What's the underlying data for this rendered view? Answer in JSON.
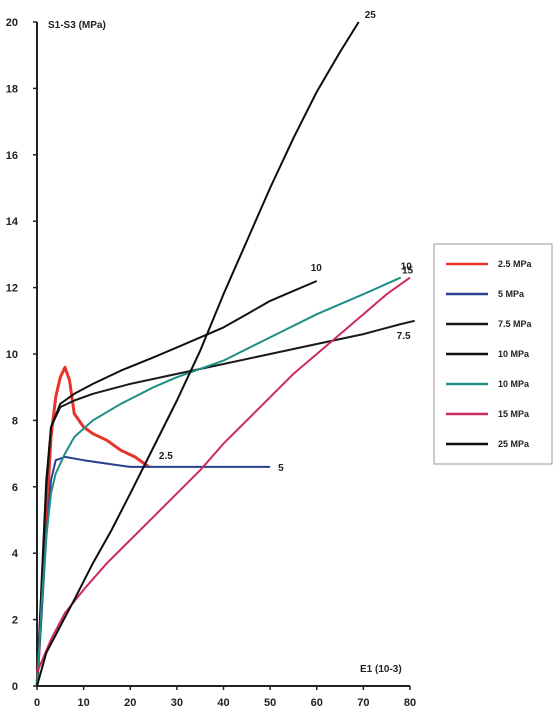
{
  "chart_data": {
    "type": "line",
    "ylabel": "S1-S3 (MPa)",
    "xlabel": "E1 (10-3)",
    "xlim": [
      0,
      80
    ],
    "ylim": [
      0,
      20
    ],
    "xticks": [
      "0",
      "10",
      "20",
      "30",
      "40",
      "50",
      "60",
      "70",
      "80"
    ],
    "yticks": [
      "0",
      "2",
      "4",
      "6",
      "8",
      "10",
      "12",
      "14",
      "16",
      "18",
      "20"
    ],
    "grid": false,
    "legend_position": "right",
    "series": [
      {
        "name": "2.5 MPa",
        "color": "#e8332b",
        "end_label": "2.5",
        "points": [
          [
            0,
            0
          ],
          [
            1,
            2.5
          ],
          [
            2,
            5
          ],
          [
            3,
            7.5
          ],
          [
            4,
            8.7
          ],
          [
            5,
            9.3
          ],
          [
            6,
            9.6
          ],
          [
            7,
            9.2
          ],
          [
            8,
            8.2
          ],
          [
            10,
            7.8
          ],
          [
            12,
            7.6
          ],
          [
            15,
            7.4
          ],
          [
            18,
            7.1
          ],
          [
            21,
            6.9
          ],
          [
            24,
            6.6
          ]
        ]
      },
      {
        "name": "5 MPa",
        "color": "#2a3f8f",
        "end_label": "5",
        "points": [
          [
            0,
            0
          ],
          [
            1,
            2.2
          ],
          [
            2,
            4.5
          ],
          [
            3,
            6.2
          ],
          [
            4,
            6.8
          ],
          [
            6,
            6.9
          ],
          [
            10,
            6.8
          ],
          [
            15,
            6.7
          ],
          [
            20,
            6.6
          ],
          [
            25,
            6.6
          ],
          [
            30,
            6.6
          ],
          [
            35,
            6.6
          ],
          [
            40,
            6.6
          ],
          [
            45,
            6.6
          ],
          [
            50,
            6.6
          ]
        ]
      },
      {
        "name": "7.5 MPa",
        "color": "#1a1a1a",
        "end_label": "7.5",
        "points": [
          [
            0,
            0
          ],
          [
            1,
            3
          ],
          [
            2,
            6
          ],
          [
            3,
            7.8
          ],
          [
            5,
            8.4
          ],
          [
            8,
            8.6
          ],
          [
            12,
            8.8
          ],
          [
            20,
            9.1
          ],
          [
            30,
            9.4
          ],
          [
            40,
            9.7
          ],
          [
            50,
            10
          ],
          [
            60,
            10.3
          ],
          [
            70,
            10.6
          ],
          [
            78,
            10.9
          ],
          [
            81,
            11
          ]
        ]
      },
      {
        "name": "10 MPa",
        "color": "#111111",
        "end_label": "10",
        "points": [
          [
            0,
            0
          ],
          [
            1,
            3.2
          ],
          [
            2,
            6.2
          ],
          [
            3,
            7.8
          ],
          [
            5,
            8.5
          ],
          [
            8,
            8.8
          ],
          [
            12,
            9.1
          ],
          [
            18,
            9.5
          ],
          [
            25,
            9.9
          ],
          [
            30,
            10.2
          ],
          [
            35,
            10.5
          ],
          [
            40,
            10.8
          ],
          [
            45,
            11.2
          ],
          [
            50,
            11.6
          ],
          [
            55,
            11.9
          ],
          [
            60,
            12.2
          ]
        ]
      },
      {
        "name": "10 MPa",
        "color": "#1f8f86",
        "end_label": "10",
        "points": [
          [
            0,
            0
          ],
          [
            1,
            2.5
          ],
          [
            2,
            4.5
          ],
          [
            3,
            5.8
          ],
          [
            4,
            6.4
          ],
          [
            6,
            7
          ],
          [
            8,
            7.5
          ],
          [
            12,
            8
          ],
          [
            18,
            8.5
          ],
          [
            25,
            9
          ],
          [
            30,
            9.3
          ],
          [
            40,
            9.8
          ],
          [
            50,
            10.5
          ],
          [
            60,
            11.2
          ],
          [
            70,
            11.8
          ],
          [
            78,
            12.3
          ]
        ]
      },
      {
        "name": "15 MPa",
        "color": "#cc2a5e",
        "end_label": "15",
        "points": [
          [
            0,
            0.4
          ],
          [
            3,
            1.4
          ],
          [
            6,
            2.2
          ],
          [
            10,
            2.9
          ],
          [
            15,
            3.7
          ],
          [
            20,
            4.4
          ],
          [
            25,
            5.1
          ],
          [
            30,
            5.8
          ],
          [
            35,
            6.5
          ],
          [
            40,
            7.3
          ],
          [
            45,
            8
          ],
          [
            50,
            8.7
          ],
          [
            55,
            9.4
          ],
          [
            60,
            10
          ],
          [
            65,
            10.6
          ],
          [
            70,
            11.2
          ],
          [
            75,
            11.8
          ],
          [
            80,
            12.3
          ]
        ]
      },
      {
        "name": "25 MPa",
        "color": "#0d0d0d",
        "end_label": "25",
        "points": [
          [
            0,
            0
          ],
          [
            2,
            1
          ],
          [
            5,
            1.8
          ],
          [
            8,
            2.6
          ],
          [
            12,
            3.7
          ],
          [
            16,
            4.7
          ],
          [
            20,
            5.8
          ],
          [
            25,
            7.2
          ],
          [
            30,
            8.6
          ],
          [
            35,
            10.1
          ],
          [
            40,
            11.8
          ],
          [
            45,
            13.4
          ],
          [
            50,
            15
          ],
          [
            55,
            16.5
          ],
          [
            60,
            17.9
          ],
          [
            65,
            19.1
          ],
          [
            69,
            20
          ]
        ]
      }
    ]
  }
}
